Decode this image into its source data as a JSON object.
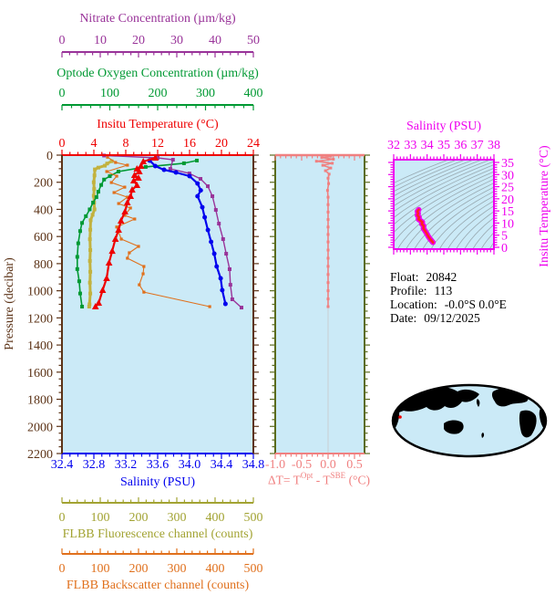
{
  "colors": {
    "nitrate": "#993399",
    "oxygen": "#009933",
    "temperature": "#EE0000",
    "salinity": "#0000EE",
    "fluorescence": "#A2A332",
    "fluorescence_data": "#C2B23E",
    "backscatter": "#E0701C",
    "pressure": "#5C3317",
    "delta": "#F08080",
    "magenta": "#EE00EE",
    "ts_core": "#FF2222",
    "plot_bg": "#CBEAF7",
    "panel_border_olive": "#5A6B1E",
    "contour": "#98A8B0",
    "map_land": "#F5BCBC",
    "map_outline": "#000000",
    "marker_red": "#EE0000"
  },
  "axes": {
    "nitrate": {
      "title": "Nitrate Concentration (µm/kg)",
      "ticks": [
        "0",
        "10",
        "20",
        "30",
        "40",
        "50"
      ],
      "minor": 2,
      "range": [
        0,
        50
      ]
    },
    "oxygen": {
      "title": "Optode Oxygen Concentration (µm/kg)",
      "ticks": [
        "0",
        "100",
        "200",
        "300",
        "400"
      ],
      "minor": 20,
      "range": [
        0,
        400
      ]
    },
    "temperature": {
      "title": "Insitu Temperature (°C)",
      "ticks": [
        "0",
        "4",
        "8",
        "12",
        "16",
        "20",
        "24"
      ],
      "minor": 1,
      "range": [
        0,
        24
      ]
    },
    "salinity": {
      "title": "Salinity (PSU)",
      "ticks": [
        "32.4",
        "32.8",
        "33.2",
        "33.6",
        "34.0",
        "34.4",
        "34.8"
      ],
      "minor": 0.1,
      "range": [
        32.4,
        34.8
      ]
    },
    "fluorescence": {
      "title": "FLBB Fluorescence channel (counts)",
      "ticks": [
        "0",
        "100",
        "200",
        "300",
        "400",
        "500"
      ],
      "minor": 20,
      "range": [
        0,
        500
      ]
    },
    "backscatter": {
      "title": "FLBB Backscatter channel (counts)",
      "ticks": [
        "0",
        "100",
        "200",
        "300",
        "400",
        "500"
      ],
      "minor": 20,
      "range": [
        0,
        500
      ]
    },
    "pressure": {
      "title": "Pressure (decibar)",
      "ticks": [
        "0",
        "200",
        "400",
        "600",
        "800",
        "1000",
        "1200",
        "1400",
        "1600",
        "1800",
        "2000",
        "2200"
      ],
      "minor": 50,
      "range": [
        0,
        2200
      ]
    },
    "delta": {
      "ticks": [
        "-1.0",
        "-0.5",
        "0.0",
        "0.5"
      ],
      "minor": 0.1,
      "label_parts": {
        "prefix": "ΔT= T",
        "sup1": "Opt",
        "mid": " - T",
        "sup2": "SBE",
        "suffix": " (°C)"
      }
    },
    "ts_salinity": {
      "title": "Salinity (PSU)",
      "ticks": [
        "32",
        "33",
        "34",
        "35",
        "36",
        "37",
        "38"
      ],
      "minor": 0.2,
      "range": [
        32,
        38
      ]
    },
    "ts_temperature": {
      "title": "Insitu Temperature (°C)",
      "ticks": [
        "0",
        "5",
        "10",
        "15",
        "20",
        "25",
        "30",
        "35"
      ],
      "minor": 1,
      "range": [
        0,
        35
      ]
    }
  },
  "float_info": {
    "lines": [
      {
        "label": "Float:",
        "value": "20842"
      },
      {
        "label": "Profile:",
        "value": "113"
      },
      {
        "label": "Location:",
        "value": "-0.0°S  0.0°E"
      },
      {
        "label": "Date:",
        "value": "09/12/2025"
      }
    ]
  },
  "chart_data": [
    {
      "id": "main-profile",
      "type": "line",
      "title": "Vertical profiles vs pressure",
      "ylabel": "Pressure (decibar)",
      "ylim": [
        0,
        2200
      ],
      "grid": false,
      "series": [
        {
          "name": "FLBB Fluorescence channel",
          "units": "counts",
          "color": "#C2B23E",
          "marker": "square",
          "marker_size": 4,
          "line_width": 3,
          "range": [
            0,
            500
          ],
          "pressure": [
            45,
            62,
            78,
            92,
            105,
            150,
            200,
            250,
            300,
            350,
            400,
            440,
            480,
            550,
            620,
            700,
            780,
            860,
            940,
            1020,
            1100,
            1117
          ],
          "values": [
            130,
            118,
            112,
            95,
            86,
            85,
            83,
            84,
            83,
            84,
            85,
            80,
            75,
            74,
            73,
            74,
            73,
            74,
            73,
            74,
            72,
            71
          ]
        },
        {
          "name": "Optode Oxygen Concentration",
          "units": "µm/kg",
          "color": "#009933",
          "marker": "square",
          "marker_size": 4,
          "line_width": 1.6,
          "range": [
            0,
            400
          ],
          "pressure": [
            40,
            60,
            87,
            121,
            155,
            180,
            220,
            270,
            310,
            350,
            400,
            450,
            500,
            560,
            650,
            750,
            840,
            930,
            1020,
            1117
          ],
          "values": [
            282,
            255,
            175,
            118,
            100,
            88,
            82,
            76,
            72,
            65,
            58,
            50,
            42,
            38,
            34,
            32,
            32,
            36,
            38,
            42
          ]
        },
        {
          "name": "FLBB Backscatter channel",
          "units": "counts",
          "color": "#E0701C",
          "marker": "square",
          "marker_size": 3.2,
          "line_width": 1.1,
          "range": [
            0,
            500
          ],
          "pressure": [
            15,
            54,
            74,
            121,
            155,
            202,
            236,
            276,
            310,
            357,
            390,
            444,
            471,
            530,
            619,
            673,
            720,
            760,
            821,
            875,
            956,
            1010,
            1117
          ],
          "values": [
            119,
            140,
            171,
            117,
            143,
            129,
            164,
            136,
            171,
            148,
            179,
            164,
            190,
            143,
            155,
            200,
            176,
            171,
            214,
            212,
            202,
            214,
            386
          ]
        },
        {
          "name": "Nitrate Concentration",
          "units": "µm/kg",
          "color": "#993399",
          "marker": "square",
          "marker_size": 4,
          "line_width": 1.4,
          "range": [
            0,
            50
          ],
          "pressure": [
            3,
            20,
            34,
            101,
            135,
            175,
            229,
            303,
            404,
            505,
            619,
            727,
            841,
            956,
            1063,
            1124
          ],
          "values": [
            11,
            25,
            29,
            28.3,
            33.3,
            36.2,
            38.1,
            39.3,
            40.2,
            41,
            42.1,
            42.9,
            43.8,
            44,
            44.5,
            46.9
          ]
        },
        {
          "name": "Salinity",
          "units": "PSU",
          "color": "#0000EE",
          "marker": "circle",
          "marker_size": 5,
          "line_width": 2.2,
          "range": [
            32.4,
            34.8
          ],
          "pressure": [
            40,
            81,
            108,
            128,
            155,
            209,
            260,
            303,
            384,
            458,
            552,
            639,
            727,
            821,
            908,
            996,
            1097
          ],
          "values": [
            33.5,
            33.57,
            33.68,
            33.83,
            34.0,
            34.1,
            34.14,
            34.1,
            34.16,
            34.19,
            34.23,
            34.27,
            34.31,
            34.34,
            34.39,
            34.41,
            34.45
          ]
        },
        {
          "name": "Insitu Temperature",
          "units": "°C",
          "color": "#EE0000",
          "marker": "triangle",
          "marker_size": 4,
          "line_width": 2.2,
          "range": [
            0,
            24
          ],
          "pressure": [
            20,
            47,
            81,
            101,
            121,
            148,
            168,
            188,
            222,
            256,
            303,
            350,
            417,
            484,
            552,
            619,
            707,
            794,
            908,
            996,
            1090,
            1117
          ],
          "values": [
            11.7,
            10.2,
            9.9,
            9.4,
            9.7,
            9.1,
            9.6,
            9.0,
            9.4,
            8.8,
            8.6,
            8.2,
            7.9,
            7.4,
            7.1,
            6.7,
            6.3,
            5.9,
            5.6,
            5.1,
            4.6,
            4.2
          ]
        }
      ]
    },
    {
      "id": "delta-t-profile",
      "type": "line",
      "title": "ΔT = TOpt - TSBE (°C) vs pressure",
      "xlim": [
        -1.0,
        0.69
      ],
      "ylim": [
        0,
        2200
      ],
      "series": [
        {
          "name": "Delta T",
          "units": "°C",
          "color": "#F08080",
          "marker": "square",
          "marker_size": 3,
          "line_width": 1.6,
          "pressure": [
            8,
            18,
            30,
            45,
            60,
            75,
            95,
            115,
            140,
            170,
            210,
            260,
            310,
            365,
            420,
            475,
            530,
            585,
            640,
            700,
            760,
            820,
            880,
            940,
            1000,
            1060,
            1117
          ],
          "values": [
            0.05,
            -0.12,
            0.1,
            -0.22,
            0.08,
            -0.1,
            0.05,
            -0.05,
            0.02,
            0,
            0.01,
            -0.01,
            0,
            0,
            0,
            0,
            0,
            0,
            0,
            0,
            0,
            0,
            0,
            0,
            0,
            0,
            0
          ]
        }
      ]
    },
    {
      "id": "ts-diagram",
      "type": "line",
      "title": "T-S diagram with isopycnal contours",
      "xlabel": "Salinity (PSU)",
      "ylabel": "Insitu Temperature (°C)",
      "xlim": [
        32,
        38
      ],
      "ylim": [
        0,
        35
      ],
      "background_contours": "isopycnals",
      "series": [
        {
          "name": "T-S curve",
          "outline_color": "#EE00EE",
          "core_color": "#FF2222",
          "salinity": [
            33.5,
            33.42,
            33.47,
            33.42,
            33.52,
            33.48,
            33.6,
            33.72,
            33.68,
            33.8,
            33.78,
            33.9,
            34.0,
            34.08,
            34.18,
            34.28,
            34.35
          ],
          "temperature": [
            15.5,
            14.8,
            14.0,
            13.2,
            12.4,
            11.6,
            11.0,
            10.4,
            9.6,
            8.8,
            7.8,
            6.6,
            5.4,
            4.4,
            3.4,
            2.6,
            2.0
          ]
        }
      ]
    }
  ],
  "map": {
    "name": "world-map-pacific-centered",
    "marker": "float-location-dot"
  }
}
